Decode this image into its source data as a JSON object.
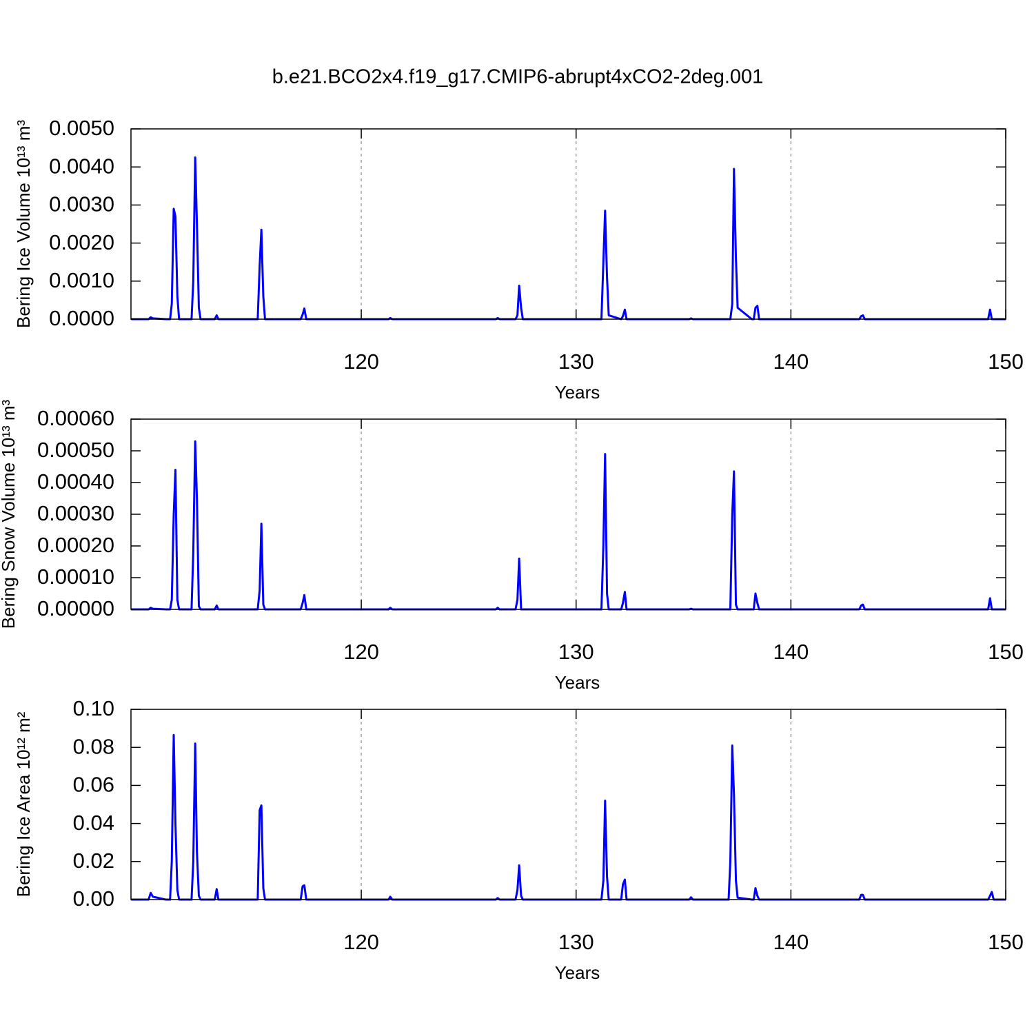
{
  "chart_data": [
    {
      "type": "line",
      "title": "b.e21.BCO2x4.f19_g17.CMIP6-abrupt4xCO2-2deg.001",
      "ylabel": "Bering Ice Volume 10¹³ m³",
      "xlabel": "Years",
      "color": "#0000ff",
      "grid": "x",
      "xlim": [
        109.28,
        150
      ],
      "xticks": [
        120,
        130,
        140,
        150
      ],
      "ylim": [
        0,
        0.005
      ],
      "yticks": [
        {
          "value": 0,
          "label": "0.0000"
        },
        {
          "value": 0.001,
          "label": "0.0010"
        },
        {
          "value": 0.002,
          "label": "0.0020"
        },
        {
          "value": 0.003,
          "label": "0.0030"
        },
        {
          "value": 0.004,
          "label": "0.0040"
        },
        {
          "value": 0.005,
          "label": "0.0050"
        }
      ],
      "x": [
        109.29,
        110.1,
        110.2,
        110.3,
        110.9,
        111.1,
        111.18,
        111.27,
        111.35,
        111.44,
        111.52,
        112.0,
        112.1,
        112.18,
        112.27,
        112.35,
        112.44,
        112.52,
        113.18,
        113.27,
        113.35,
        115.1,
        115.18,
        115.27,
        115.35,
        115.44,
        115.52,
        117.18,
        117.27,
        117.35,
        117.44,
        121.27,
        121.35,
        121.44,
        126.27,
        126.35,
        126.44,
        127.18,
        127.27,
        127.35,
        127.44,
        127.52,
        131.1,
        131.18,
        131.27,
        131.35,
        131.44,
        131.52,
        132.1,
        132.18,
        132.27,
        132.35,
        135.27,
        135.35,
        135.44,
        137.1,
        137.18,
        137.27,
        137.35,
        137.44,
        137.52,
        138.18,
        138.27,
        138.35,
        138.44,
        138.52,
        143.18,
        143.27,
        143.35,
        143.44,
        149.18,
        149.27,
        149.35,
        149.44,
        150
      ],
      "values": [
        0,
        0,
        5e-05,
        2e-05,
        0,
        0,
        0.0004,
        0.0029,
        0.0027,
        0.0006,
        0,
        0,
        0,
        0.001,
        0.00425,
        0.0025,
        0.0003,
        0,
        0,
        0.0001,
        0,
        0,
        0,
        0.0014,
        0.00235,
        0.0006,
        0,
        0,
        0.00012,
        0.00028,
        0,
        0,
        3e-05,
        0,
        0,
        3e-05,
        0,
        0,
        0.0001,
        0.00088,
        0.0003,
        0,
        0,
        0,
        0.0015,
        0.00285,
        0.0011,
        0.0001,
        0,
        8e-05,
        0.00025,
        0,
        0,
        2e-05,
        0,
        0,
        0,
        0.0004,
        0.00395,
        0.0016,
        0.0003,
        0,
        0,
        0.0003,
        0.00035,
        0,
        0,
        8e-05,
        0.0001,
        0,
        0,
        0.00025,
        0,
        0,
        0
      ]
    },
    {
      "type": "line",
      "ylabel": "Bering Snow Volume 10¹³ m³",
      "xlabel": "Years",
      "color": "#0000ff",
      "grid": "x",
      "xlim": [
        109.28,
        150
      ],
      "xticks": [
        120,
        130,
        140,
        150
      ],
      "ylim": [
        0,
        0.0006
      ],
      "yticks": [
        {
          "value": 0,
          "label": "0.00000"
        },
        {
          "value": 0.0001,
          "label": "0.00010"
        },
        {
          "value": 0.0002,
          "label": "0.00020"
        },
        {
          "value": 0.0003,
          "label": "0.00030"
        },
        {
          "value": 0.0004,
          "label": "0.00040"
        },
        {
          "value": 0.0005,
          "label": "0.00050"
        },
        {
          "value": 0.0006,
          "label": "0.00060"
        }
      ],
      "x": [
        109.29,
        110.1,
        110.2,
        110.3,
        110.9,
        111.1,
        111.18,
        111.27,
        111.35,
        111.44,
        111.52,
        112.0,
        112.1,
        112.18,
        112.27,
        112.35,
        112.44,
        112.52,
        113.18,
        113.27,
        113.35,
        115.1,
        115.18,
        115.27,
        115.35,
        115.44,
        115.52,
        117.18,
        117.27,
        117.35,
        117.44,
        121.27,
        121.35,
        121.44,
        126.27,
        126.35,
        126.44,
        127.18,
        127.27,
        127.35,
        127.44,
        127.52,
        131.1,
        131.18,
        131.27,
        131.35,
        131.44,
        131.52,
        132.1,
        132.18,
        132.27,
        132.35,
        135.27,
        135.35,
        135.44,
        137.1,
        137.18,
        137.27,
        137.35,
        137.44,
        137.52,
        138.18,
        138.27,
        138.35,
        138.44,
        138.52,
        143.18,
        143.27,
        143.35,
        143.44,
        149.18,
        149.27,
        149.35,
        149.44,
        150
      ],
      "values": [
        0,
        0,
        5e-06,
        2e-06,
        0,
        0,
        3e-05,
        0.0003,
        0.00044,
        3e-05,
        0,
        0,
        0,
        0.00018,
        0.00053,
        0.00035,
        1e-05,
        0,
        0,
        1.2e-05,
        0,
        0,
        0,
        6e-05,
        0.00027,
        1.5e-05,
        0,
        0,
        2e-05,
        4.5e-05,
        0,
        0,
        5e-06,
        0,
        0,
        5e-06,
        0,
        0,
        3e-05,
        0.00016,
        0,
        0,
        0,
        0,
        0.0002,
        0.00049,
        5e-05,
        0,
        0,
        2e-05,
        5.5e-05,
        0,
        0,
        2e-06,
        0,
        0,
        0,
        0.0003,
        0.000435,
        1.5e-05,
        0,
        0,
        0,
        5e-05,
        2e-05,
        0,
        0,
        1.2e-05,
        1.5e-05,
        0,
        0,
        3.5e-05,
        0,
        0,
        0
      ]
    },
    {
      "type": "line",
      "ylabel": "Bering Ice Area 10¹² m²",
      "xlabel": "Years",
      "color": "#0000ff",
      "grid": "x",
      "xlim": [
        109.28,
        150
      ],
      "xticks": [
        120,
        130,
        140,
        150
      ],
      "ylim": [
        0,
        0.1
      ],
      "yticks": [
        {
          "value": 0,
          "label": "0.00"
        },
        {
          "value": 0.02,
          "label": "0.02"
        },
        {
          "value": 0.04,
          "label": "0.04"
        },
        {
          "value": 0.06,
          "label": "0.06"
        },
        {
          "value": 0.08,
          "label": "0.08"
        },
        {
          "value": 0.1,
          "label": "0.10"
        }
      ],
      "x": [
        109.29,
        110.1,
        110.2,
        110.3,
        110.9,
        111.1,
        111.18,
        111.27,
        111.35,
        111.44,
        111.52,
        112.0,
        112.1,
        112.18,
        112.27,
        112.35,
        112.44,
        112.52,
        113.18,
        113.27,
        113.35,
        115.1,
        115.18,
        115.27,
        115.35,
        115.44,
        115.52,
        117.18,
        117.27,
        117.35,
        117.44,
        121.27,
        121.35,
        121.44,
        126.27,
        126.35,
        126.44,
        127.18,
        127.27,
        127.35,
        127.44,
        127.52,
        131.1,
        131.18,
        131.27,
        131.35,
        131.44,
        131.52,
        132.1,
        132.18,
        132.27,
        132.35,
        135.27,
        135.35,
        135.44,
        137.1,
        137.18,
        137.27,
        137.35,
        137.44,
        137.52,
        138.18,
        138.27,
        138.35,
        138.44,
        138.52,
        143.18,
        143.27,
        143.35,
        143.44,
        149.18,
        149.27,
        149.35,
        149.44,
        150
      ],
      "values": [
        0,
        0,
        0.0035,
        0.0015,
        0,
        0,
        0.02,
        0.0865,
        0.04,
        0.005,
        0,
        0,
        0,
        0.02,
        0.082,
        0.025,
        0.002,
        0,
        0,
        0.0055,
        0,
        0,
        0,
        0.047,
        0.0495,
        0.006,
        0,
        0,
        0.007,
        0.0075,
        0,
        0,
        0.0015,
        0,
        0,
        0.0008,
        0,
        0,
        0.005,
        0.018,
        0.002,
        0,
        0,
        0,
        0.01,
        0.052,
        0.012,
        0,
        0,
        0.008,
        0.0105,
        0,
        0,
        0.0012,
        0,
        0,
        0.02,
        0.081,
        0.055,
        0.01,
        0.001,
        0,
        0,
        0.006,
        0.002,
        0,
        0,
        0.0025,
        0.0025,
        0,
        0,
        0.002,
        0.004,
        0,
        0
      ]
    }
  ]
}
